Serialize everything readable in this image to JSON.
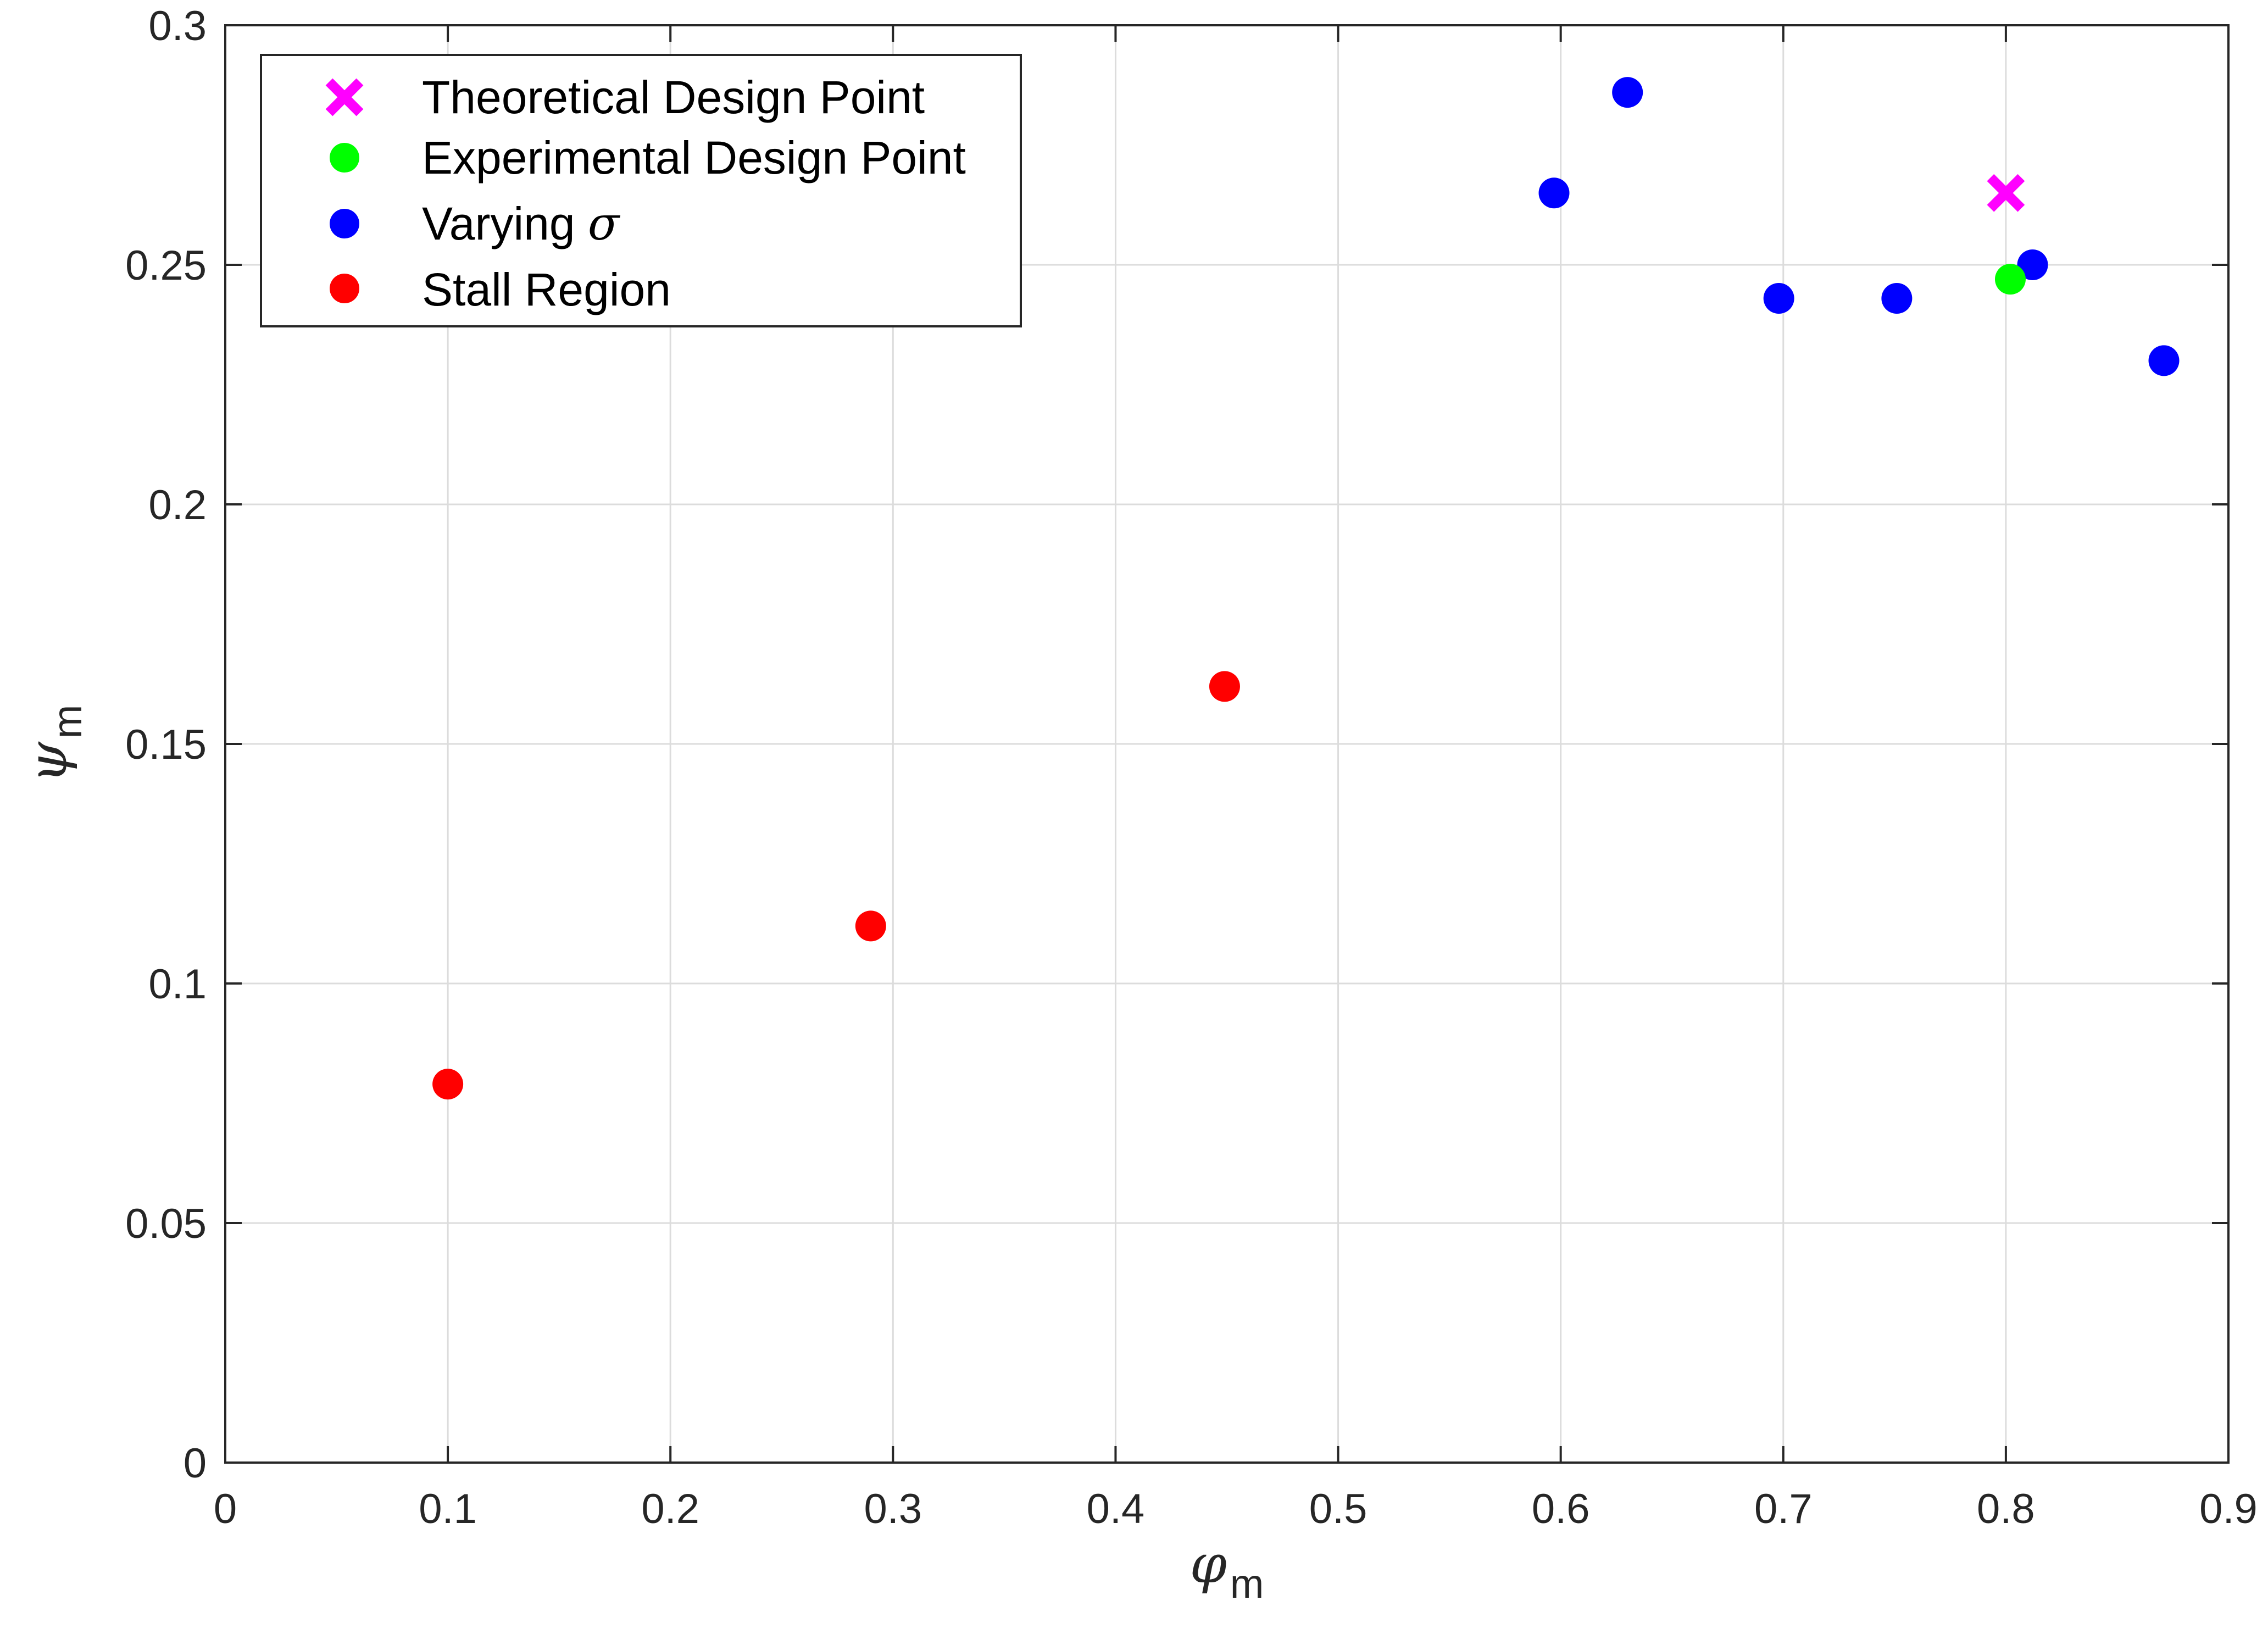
{
  "chart_data": {
    "type": "scatter",
    "xlabel": {
      "symbol": "φ",
      "subscript": "m"
    },
    "ylabel": {
      "symbol": "ψ",
      "subscript": "m"
    },
    "xlim": [
      0,
      0.9
    ],
    "ylim": [
      0,
      0.3
    ],
    "xticks": [
      "0",
      "0.1",
      "0.2",
      "0.3",
      "0.4",
      "0.5",
      "0.6",
      "0.7",
      "0.8",
      "0.9"
    ],
    "yticks": [
      "0",
      "0.05",
      "0.1",
      "0.15",
      "0.2",
      "0.25",
      "0.3"
    ],
    "grid": true,
    "legend_position": "top-left",
    "series": [
      {
        "name": "Theoretical Design Point",
        "marker": "x",
        "color": "#FF00FF",
        "points": [
          [
            0.8,
            0.265
          ]
        ]
      },
      {
        "name": "Experimental Design Point",
        "marker": "circle",
        "color": "#00FF00",
        "points": [
          [
            0.802,
            0.247
          ]
        ]
      },
      {
        "name": "Varying σ",
        "name_parts": {
          "text": "Varying ",
          "symbol": "σ"
        },
        "marker": "circle",
        "color": "#0000FF",
        "points": [
          [
            0.597,
            0.265
          ],
          [
            0.63,
            0.286
          ],
          [
            0.698,
            0.243
          ],
          [
            0.751,
            0.243
          ],
          [
            0.812,
            0.25
          ],
          [
            0.871,
            0.23
          ]
        ]
      },
      {
        "name": "Stall Region",
        "marker": "circle",
        "color": "#FF0000",
        "points": [
          [
            0.1,
            0.079
          ],
          [
            0.29,
            0.112
          ],
          [
            0.449,
            0.162
          ]
        ]
      }
    ]
  }
}
